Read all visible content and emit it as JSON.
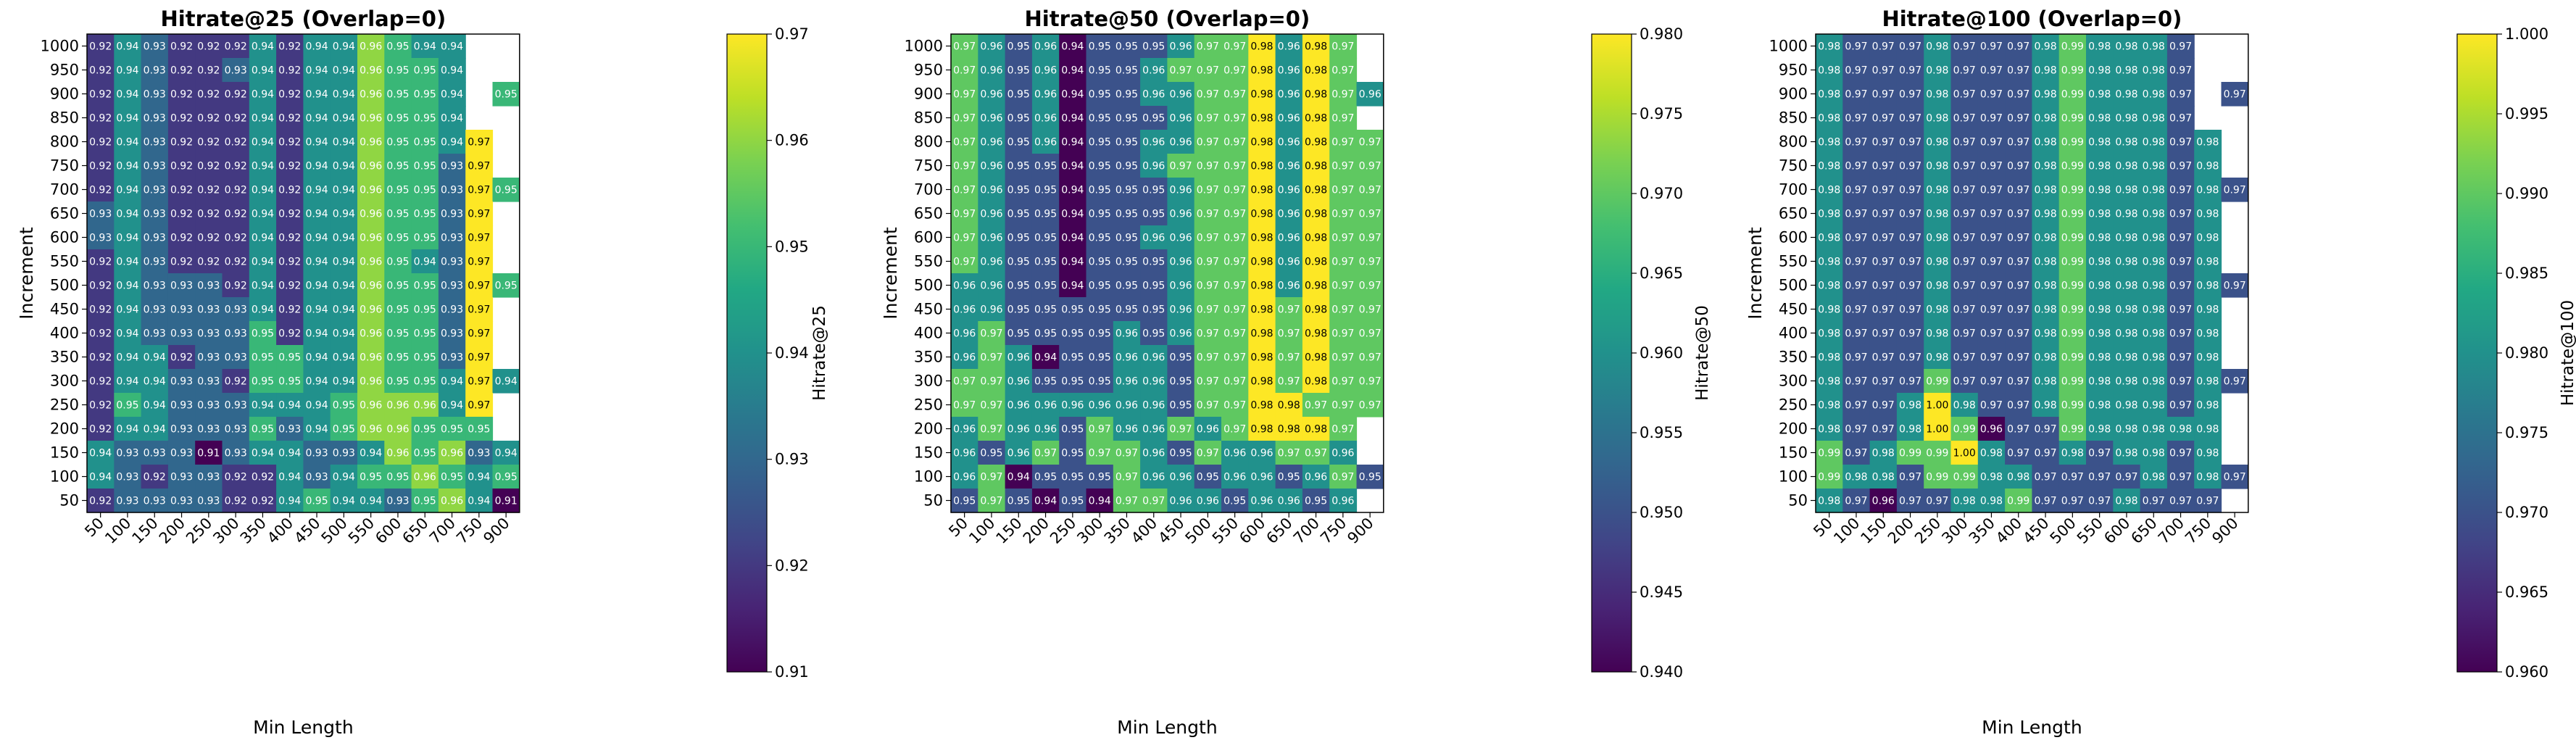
{
  "chart_data": [
    {
      "type": "heatmap",
      "title": "Hitrate@25 (Overlap=0)",
      "xlabel": "Min Length",
      "ylabel": "Increment",
      "colorbar_label": "Hitrate@25",
      "colormap": "viridis",
      "vmin": 0.91,
      "vmax": 0.97,
      "colorbar_ticks": [
        "0.91",
        "0.92",
        "0.93",
        "0.94",
        "0.95",
        "0.96",
        "0.97"
      ],
      "x_categories": [
        "50",
        "100",
        "150",
        "200",
        "250",
        "300",
        "350",
        "400",
        "450",
        "500",
        "550",
        "600",
        "650",
        "700",
        "750",
        "900"
      ],
      "y_categories": [
        "1000",
        "950",
        "900",
        "850",
        "800",
        "750",
        "700",
        "650",
        "600",
        "550",
        "500",
        "450",
        "400",
        "350",
        "300",
        "250",
        "200",
        "150",
        "100",
        "50"
      ],
      "values": [
        [
          0.92,
          0.94,
          0.93,
          0.92,
          0.92,
          0.92,
          0.94,
          0.92,
          0.94,
          0.94,
          0.96,
          0.95,
          0.94,
          0.94,
          null,
          null
        ],
        [
          0.92,
          0.94,
          0.93,
          0.92,
          0.92,
          0.93,
          0.94,
          0.92,
          0.94,
          0.94,
          0.96,
          0.95,
          0.95,
          0.94,
          null,
          null
        ],
        [
          0.92,
          0.94,
          0.93,
          0.92,
          0.92,
          0.92,
          0.94,
          0.92,
          0.94,
          0.94,
          0.96,
          0.95,
          0.95,
          0.94,
          null,
          0.95
        ],
        [
          0.92,
          0.94,
          0.93,
          0.92,
          0.92,
          0.92,
          0.94,
          0.92,
          0.94,
          0.94,
          0.96,
          0.95,
          0.95,
          0.94,
          null,
          null
        ],
        [
          0.92,
          0.94,
          0.93,
          0.92,
          0.92,
          0.92,
          0.94,
          0.92,
          0.94,
          0.94,
          0.96,
          0.95,
          0.95,
          0.94,
          0.97,
          null
        ],
        [
          0.92,
          0.94,
          0.93,
          0.92,
          0.92,
          0.92,
          0.94,
          0.92,
          0.94,
          0.94,
          0.96,
          0.95,
          0.95,
          0.93,
          0.97,
          null
        ],
        [
          0.92,
          0.94,
          0.93,
          0.92,
          0.92,
          0.92,
          0.94,
          0.92,
          0.94,
          0.94,
          0.96,
          0.95,
          0.95,
          0.93,
          0.97,
          0.95
        ],
        [
          0.93,
          0.94,
          0.93,
          0.92,
          0.92,
          0.92,
          0.94,
          0.92,
          0.94,
          0.94,
          0.96,
          0.95,
          0.95,
          0.93,
          0.97,
          null
        ],
        [
          0.93,
          0.94,
          0.93,
          0.92,
          0.92,
          0.92,
          0.94,
          0.92,
          0.94,
          0.94,
          0.96,
          0.95,
          0.95,
          0.93,
          0.97,
          null
        ],
        [
          0.92,
          0.94,
          0.93,
          0.92,
          0.92,
          0.92,
          0.94,
          0.92,
          0.94,
          0.94,
          0.96,
          0.95,
          0.94,
          0.93,
          0.97,
          null
        ],
        [
          0.92,
          0.94,
          0.93,
          0.93,
          0.93,
          0.92,
          0.94,
          0.92,
          0.94,
          0.94,
          0.96,
          0.95,
          0.95,
          0.93,
          0.97,
          0.95
        ],
        [
          0.92,
          0.94,
          0.93,
          0.93,
          0.93,
          0.93,
          0.94,
          0.92,
          0.94,
          0.94,
          0.96,
          0.95,
          0.95,
          0.93,
          0.97,
          null
        ],
        [
          0.92,
          0.94,
          0.93,
          0.93,
          0.93,
          0.93,
          0.95,
          0.92,
          0.94,
          0.94,
          0.96,
          0.95,
          0.95,
          0.93,
          0.97,
          null
        ],
        [
          0.92,
          0.94,
          0.94,
          0.92,
          0.93,
          0.93,
          0.95,
          0.95,
          0.94,
          0.94,
          0.96,
          0.95,
          0.95,
          0.93,
          0.97,
          null
        ],
        [
          0.92,
          0.94,
          0.94,
          0.93,
          0.93,
          0.92,
          0.95,
          0.95,
          0.94,
          0.94,
          0.96,
          0.95,
          0.95,
          0.94,
          0.97,
          0.94
        ],
        [
          0.92,
          0.95,
          0.94,
          0.93,
          0.93,
          0.93,
          0.94,
          0.94,
          0.94,
          0.95,
          0.96,
          0.96,
          0.96,
          0.94,
          0.97,
          null
        ],
        [
          0.92,
          0.94,
          0.94,
          0.93,
          0.93,
          0.93,
          0.95,
          0.93,
          0.94,
          0.95,
          0.96,
          0.96,
          0.95,
          0.95,
          0.95,
          null
        ],
        [
          0.94,
          0.93,
          0.93,
          0.93,
          0.91,
          0.93,
          0.94,
          0.94,
          0.93,
          0.93,
          0.94,
          0.96,
          0.95,
          0.96,
          0.93,
          0.94
        ],
        [
          0.94,
          0.93,
          0.92,
          0.93,
          0.93,
          0.92,
          0.92,
          0.94,
          0.93,
          0.94,
          0.95,
          0.95,
          0.96,
          0.95,
          0.94,
          0.95
        ],
        [
          0.92,
          0.93,
          0.93,
          0.93,
          0.93,
          0.92,
          0.92,
          0.94,
          0.95,
          0.94,
          0.94,
          0.93,
          0.95,
          0.96,
          0.94,
          0.91
        ]
      ]
    },
    {
      "type": "heatmap",
      "title": "Hitrate@50 (Overlap=0)",
      "xlabel": "Min Length",
      "ylabel": "Increment",
      "colorbar_label": "Hitrate@50",
      "colormap": "viridis",
      "vmin": 0.94,
      "vmax": 0.98,
      "colorbar_ticks": [
        "0.940",
        "0.945",
        "0.950",
        "0.955",
        "0.960",
        "0.965",
        "0.970",
        "0.975",
        "0.980"
      ],
      "x_categories": [
        "50",
        "100",
        "150",
        "200",
        "250",
        "300",
        "350",
        "400",
        "450",
        "500",
        "550",
        "600",
        "650",
        "700",
        "750",
        "900"
      ],
      "y_categories": [
        "1000",
        "950",
        "900",
        "850",
        "800",
        "750",
        "700",
        "650",
        "600",
        "550",
        "500",
        "450",
        "400",
        "350",
        "300",
        "250",
        "200",
        "150",
        "100",
        "50"
      ],
      "values": [
        [
          0.97,
          0.96,
          0.95,
          0.96,
          0.94,
          0.95,
          0.95,
          0.95,
          0.96,
          0.97,
          0.97,
          0.98,
          0.96,
          0.98,
          0.97,
          null
        ],
        [
          0.97,
          0.96,
          0.95,
          0.96,
          0.94,
          0.95,
          0.95,
          0.96,
          0.97,
          0.97,
          0.97,
          0.98,
          0.96,
          0.98,
          0.97,
          null
        ],
        [
          0.97,
          0.96,
          0.95,
          0.96,
          0.94,
          0.95,
          0.95,
          0.96,
          0.96,
          0.97,
          0.97,
          0.98,
          0.96,
          0.98,
          0.97,
          0.96
        ],
        [
          0.97,
          0.96,
          0.95,
          0.96,
          0.94,
          0.95,
          0.95,
          0.95,
          0.96,
          0.97,
          0.97,
          0.98,
          0.96,
          0.98,
          0.97,
          null
        ],
        [
          0.97,
          0.96,
          0.95,
          0.96,
          0.94,
          0.95,
          0.95,
          0.96,
          0.96,
          0.97,
          0.97,
          0.98,
          0.96,
          0.98,
          0.97,
          0.97
        ],
        [
          0.97,
          0.96,
          0.95,
          0.95,
          0.94,
          0.95,
          0.95,
          0.96,
          0.97,
          0.97,
          0.97,
          0.98,
          0.96,
          0.98,
          0.97,
          0.97
        ],
        [
          0.97,
          0.96,
          0.95,
          0.95,
          0.94,
          0.95,
          0.95,
          0.95,
          0.96,
          0.97,
          0.97,
          0.98,
          0.96,
          0.98,
          0.97,
          0.97
        ],
        [
          0.97,
          0.96,
          0.95,
          0.95,
          0.94,
          0.95,
          0.95,
          0.95,
          0.96,
          0.97,
          0.97,
          0.98,
          0.96,
          0.98,
          0.97,
          0.97
        ],
        [
          0.97,
          0.96,
          0.95,
          0.95,
          0.94,
          0.95,
          0.95,
          0.96,
          0.96,
          0.97,
          0.97,
          0.98,
          0.96,
          0.98,
          0.97,
          0.97
        ],
        [
          0.97,
          0.96,
          0.95,
          0.95,
          0.94,
          0.95,
          0.95,
          0.95,
          0.96,
          0.97,
          0.97,
          0.98,
          0.96,
          0.98,
          0.97,
          0.97
        ],
        [
          0.96,
          0.96,
          0.95,
          0.95,
          0.94,
          0.95,
          0.95,
          0.95,
          0.96,
          0.97,
          0.97,
          0.98,
          0.96,
          0.98,
          0.97,
          0.97
        ],
        [
          0.96,
          0.96,
          0.95,
          0.95,
          0.95,
          0.95,
          0.95,
          0.95,
          0.96,
          0.97,
          0.97,
          0.98,
          0.97,
          0.98,
          0.97,
          0.97
        ],
        [
          0.96,
          0.97,
          0.95,
          0.95,
          0.95,
          0.95,
          0.96,
          0.95,
          0.96,
          0.97,
          0.97,
          0.98,
          0.97,
          0.98,
          0.97,
          0.97
        ],
        [
          0.96,
          0.97,
          0.96,
          0.94,
          0.95,
          0.95,
          0.96,
          0.96,
          0.95,
          0.97,
          0.97,
          0.98,
          0.97,
          0.98,
          0.97,
          0.97
        ],
        [
          0.97,
          0.97,
          0.96,
          0.95,
          0.95,
          0.95,
          0.96,
          0.96,
          0.95,
          0.97,
          0.97,
          0.98,
          0.97,
          0.98,
          0.97,
          0.97
        ],
        [
          0.97,
          0.97,
          0.96,
          0.96,
          0.96,
          0.96,
          0.96,
          0.96,
          0.95,
          0.97,
          0.97,
          0.98,
          0.98,
          0.97,
          0.97,
          0.97
        ],
        [
          0.96,
          0.97,
          0.96,
          0.96,
          0.95,
          0.97,
          0.96,
          0.96,
          0.97,
          0.96,
          0.97,
          0.98,
          0.98,
          0.98,
          0.97,
          null
        ],
        [
          0.96,
          0.95,
          0.96,
          0.97,
          0.95,
          0.97,
          0.97,
          0.96,
          0.95,
          0.97,
          0.96,
          0.96,
          0.97,
          0.97,
          0.96,
          null
        ],
        [
          0.96,
          0.97,
          0.94,
          0.95,
          0.95,
          0.95,
          0.97,
          0.96,
          0.96,
          0.95,
          0.96,
          0.96,
          0.95,
          0.96,
          0.97,
          0.95
        ],
        [
          0.95,
          0.97,
          0.95,
          0.94,
          0.95,
          0.94,
          0.97,
          0.97,
          0.96,
          0.96,
          0.95,
          0.96,
          0.96,
          0.95,
          0.96,
          null
        ]
      ]
    },
    {
      "type": "heatmap",
      "title": "Hitrate@100 (Overlap=0)",
      "xlabel": "Min Length",
      "ylabel": "Increment",
      "colorbar_label": "Hitrate@100",
      "colormap": "viridis",
      "vmin": 0.96,
      "vmax": 1.0,
      "colorbar_ticks": [
        "0.960",
        "0.965",
        "0.970",
        "0.975",
        "0.980",
        "0.985",
        "0.990",
        "0.995",
        "1.000"
      ],
      "x_categories": [
        "50",
        "100",
        "150",
        "200",
        "250",
        "300",
        "350",
        "400",
        "450",
        "500",
        "550",
        "600",
        "650",
        "700",
        "750",
        "900"
      ],
      "y_categories": [
        "1000",
        "950",
        "900",
        "850",
        "800",
        "750",
        "700",
        "650",
        "600",
        "550",
        "500",
        "450",
        "400",
        "350",
        "300",
        "250",
        "200",
        "150",
        "100",
        "50"
      ],
      "values": [
        [
          0.98,
          0.97,
          0.97,
          0.97,
          0.98,
          0.97,
          0.97,
          0.97,
          0.98,
          0.99,
          0.98,
          0.98,
          0.98,
          0.97,
          null,
          null
        ],
        [
          0.98,
          0.97,
          0.97,
          0.97,
          0.98,
          0.97,
          0.97,
          0.97,
          0.98,
          0.99,
          0.98,
          0.98,
          0.98,
          0.97,
          null,
          null
        ],
        [
          0.98,
          0.97,
          0.97,
          0.97,
          0.98,
          0.97,
          0.97,
          0.97,
          0.98,
          0.99,
          0.98,
          0.98,
          0.98,
          0.97,
          null,
          0.97
        ],
        [
          0.98,
          0.97,
          0.97,
          0.97,
          0.98,
          0.97,
          0.97,
          0.97,
          0.98,
          0.99,
          0.98,
          0.98,
          0.98,
          0.97,
          null,
          null
        ],
        [
          0.98,
          0.97,
          0.97,
          0.97,
          0.98,
          0.97,
          0.97,
          0.97,
          0.98,
          0.99,
          0.98,
          0.98,
          0.98,
          0.97,
          0.98,
          null
        ],
        [
          0.98,
          0.97,
          0.97,
          0.97,
          0.98,
          0.97,
          0.97,
          0.97,
          0.98,
          0.99,
          0.98,
          0.98,
          0.98,
          0.97,
          0.98,
          null
        ],
        [
          0.98,
          0.97,
          0.97,
          0.97,
          0.98,
          0.97,
          0.97,
          0.97,
          0.98,
          0.99,
          0.98,
          0.98,
          0.98,
          0.97,
          0.98,
          0.97
        ],
        [
          0.98,
          0.97,
          0.97,
          0.97,
          0.98,
          0.97,
          0.97,
          0.97,
          0.98,
          0.99,
          0.98,
          0.98,
          0.98,
          0.97,
          0.98,
          null
        ],
        [
          0.98,
          0.97,
          0.97,
          0.97,
          0.98,
          0.97,
          0.97,
          0.97,
          0.98,
          0.99,
          0.98,
          0.98,
          0.98,
          0.97,
          0.98,
          null
        ],
        [
          0.98,
          0.97,
          0.97,
          0.97,
          0.98,
          0.97,
          0.97,
          0.97,
          0.98,
          0.99,
          0.98,
          0.98,
          0.98,
          0.97,
          0.98,
          null
        ],
        [
          0.98,
          0.97,
          0.97,
          0.97,
          0.98,
          0.97,
          0.97,
          0.97,
          0.98,
          0.99,
          0.98,
          0.98,
          0.98,
          0.97,
          0.98,
          0.97
        ],
        [
          0.98,
          0.97,
          0.97,
          0.97,
          0.98,
          0.97,
          0.97,
          0.97,
          0.98,
          0.99,
          0.98,
          0.98,
          0.98,
          0.97,
          0.98,
          null
        ],
        [
          0.98,
          0.97,
          0.97,
          0.97,
          0.98,
          0.97,
          0.97,
          0.97,
          0.98,
          0.99,
          0.98,
          0.98,
          0.98,
          0.97,
          0.98,
          null
        ],
        [
          0.98,
          0.97,
          0.97,
          0.97,
          0.98,
          0.97,
          0.97,
          0.97,
          0.98,
          0.99,
          0.98,
          0.98,
          0.98,
          0.97,
          0.98,
          null
        ],
        [
          0.98,
          0.97,
          0.97,
          0.97,
          0.99,
          0.97,
          0.97,
          0.97,
          0.98,
          0.99,
          0.98,
          0.98,
          0.98,
          0.97,
          0.98,
          0.97
        ],
        [
          0.98,
          0.97,
          0.97,
          0.98,
          1.0,
          0.98,
          0.97,
          0.97,
          0.98,
          0.99,
          0.98,
          0.98,
          0.98,
          0.97,
          0.98,
          null
        ],
        [
          0.98,
          0.97,
          0.97,
          0.98,
          1.0,
          0.99,
          0.96,
          0.97,
          0.97,
          0.99,
          0.98,
          0.98,
          0.98,
          0.98,
          0.98,
          null
        ],
        [
          0.99,
          0.97,
          0.98,
          0.99,
          0.99,
          1.0,
          0.98,
          0.97,
          0.97,
          0.98,
          0.97,
          0.98,
          0.98,
          0.97,
          0.98,
          null
        ],
        [
          0.99,
          0.98,
          0.98,
          0.97,
          0.99,
          0.99,
          0.98,
          0.98,
          0.97,
          0.97,
          0.97,
          0.97,
          0.98,
          0.97,
          0.98,
          0.97
        ],
        [
          0.98,
          0.97,
          0.96,
          0.97,
          0.97,
          0.98,
          0.98,
          0.99,
          0.97,
          0.97,
          0.97,
          0.98,
          0.97,
          0.97,
          0.97,
          null
        ]
      ]
    }
  ]
}
